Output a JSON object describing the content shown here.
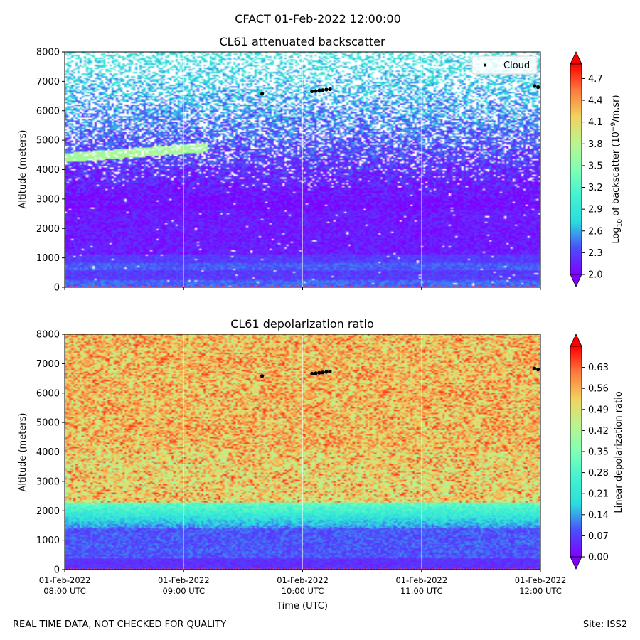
{
  "figure": {
    "suptitle": "CFACT 01-Feb-2022 12:00:00",
    "footer_left": "REAL TIME DATA, NOT CHECKED FOR QUALITY",
    "footer_right": "Site: ISS2"
  },
  "chart_data": [
    {
      "type": "heatmap",
      "title": "CL61 attenuated backscatter",
      "ylabel": "Altitude (meters)",
      "ylim": [
        0,
        8000
      ],
      "yticks": [
        0,
        1000,
        2000,
        3000,
        4000,
        5000,
        6000,
        7000,
        8000
      ],
      "x_range": [
        "01-Feb-2022 08:00 UTC",
        "01-Feb-2022 12:00 UTC"
      ],
      "xtick_labels_hidden": true,
      "colormap": "rainbow",
      "colorbar": {
        "label_prefix": "Log",
        "label_sub": "10",
        "label_mid": " of backscatter (10",
        "label_sup": "−9",
        "label_suffix": "/m.sr)",
        "range": [
          2.0,
          4.9
        ],
        "ticks": [
          "2.0",
          "2.3",
          "2.6",
          "2.9",
          "3.2",
          "3.5",
          "3.8",
          "4.1",
          "4.4",
          "4.7"
        ],
        "extend": "both"
      },
      "legend": {
        "entries": [
          "Cloud"
        ],
        "placement": "top-right"
      },
      "features": {
        "aerosol_layer": {
          "start_hour": 8.0,
          "end_hour": 9.2,
          "altitude_start": 4400,
          "altitude_end": 4750,
          "value": 3.7
        },
        "cloud_points": [
          {
            "hour": 9.66,
            "altitude": 6580
          },
          {
            "hour": 10.08,
            "altitude": 6660
          },
          {
            "hour": 10.11,
            "altitude": 6670
          },
          {
            "hour": 10.14,
            "altitude": 6690
          },
          {
            "hour": 10.17,
            "altitude": 6700
          },
          {
            "hour": 10.2,
            "altitude": 6720
          },
          {
            "hour": 10.23,
            "altitude": 6730
          },
          {
            "hour": 11.95,
            "altitude": 6840
          },
          {
            "hour": 11.98,
            "altitude": 6800
          }
        ]
      }
    },
    {
      "type": "heatmap",
      "title": "CL61 depolarization ratio",
      "ylabel": "Altitude (meters)",
      "xlabel": "Time (UTC)",
      "ylim": [
        0,
        8000
      ],
      "yticks": [
        0,
        1000,
        2000,
        3000,
        4000,
        5000,
        6000,
        7000,
        8000
      ],
      "xticks": [
        {
          "line1": "01-Feb-2022",
          "line2": "08:00 UTC"
        },
        {
          "line1": "01-Feb-2022",
          "line2": "09:00 UTC"
        },
        {
          "line1": "01-Feb-2022",
          "line2": "10:00 UTC"
        },
        {
          "line1": "01-Feb-2022",
          "line2": "11:00 UTC"
        },
        {
          "line1": "01-Feb-2022",
          "line2": "12:00 UTC"
        }
      ],
      "colormap": "rainbow",
      "colorbar": {
        "label": "Linear depolarization ratio",
        "range": [
          0.0,
          0.7
        ],
        "ticks": [
          "0.00",
          "0.07",
          "0.14",
          "0.21",
          "0.28",
          "0.35",
          "0.42",
          "0.49",
          "0.56",
          "0.63"
        ],
        "extend": "both"
      },
      "features": {
        "cloud_points": [
          {
            "hour": 9.66,
            "altitude": 6580
          },
          {
            "hour": 10.08,
            "altitude": 6660
          },
          {
            "hour": 10.11,
            "altitude": 6670
          },
          {
            "hour": 10.14,
            "altitude": 6690
          },
          {
            "hour": 10.17,
            "altitude": 6700
          },
          {
            "hour": 10.2,
            "altitude": 6720
          },
          {
            "hour": 10.23,
            "altitude": 6730
          },
          {
            "hour": 11.95,
            "altitude": 6840
          },
          {
            "hour": 11.98,
            "altitude": 6800
          }
        ]
      }
    }
  ]
}
